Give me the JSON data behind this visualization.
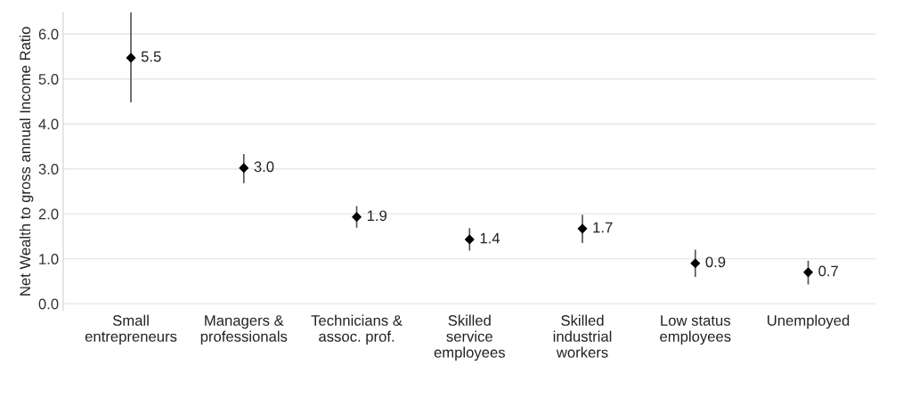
{
  "chart_data": {
    "type": "scatter",
    "ylabel": "Net Wealth to gross annual Income Ratio",
    "categories": [
      "Small\nentrepreneurs",
      "Managers &\nprofessionals",
      "Technicians &\nassoc. prof.",
      "Skilled\nservice\nemployees",
      "Skilled\nindustrial\nworkers",
      "Low status\nemployees",
      "Unemployed"
    ],
    "values": [
      5.47,
      3.02,
      1.93,
      1.43,
      1.67,
      0.9,
      0.7
    ],
    "errors": [
      [
        4.48,
        6.48
      ],
      [
        2.68,
        3.33
      ],
      [
        1.69,
        2.17
      ],
      [
        1.18,
        1.68
      ],
      [
        1.35,
        1.98
      ],
      [
        0.6,
        1.2
      ],
      [
        0.43,
        0.96
      ]
    ],
    "value_labels": [
      "5.5",
      "3.0",
      "1.9",
      "1.4",
      "1.7",
      "0.9",
      "0.7"
    ],
    "color": "#000000",
    "marker": "diamond",
    "ylim": [
      -0.15,
      6.48
    ],
    "yticks": [
      {
        "value": 0,
        "label": "0.0"
      },
      {
        "value": 1,
        "label": "1.0"
      },
      {
        "value": 2,
        "label": "2.0"
      },
      {
        "value": 3,
        "label": "3.0"
      },
      {
        "value": 4,
        "label": "4.0"
      },
      {
        "value": 5,
        "label": "5.0"
      },
      {
        "value": 6,
        "label": "6.0"
      }
    ],
    "grid": "y"
  }
}
